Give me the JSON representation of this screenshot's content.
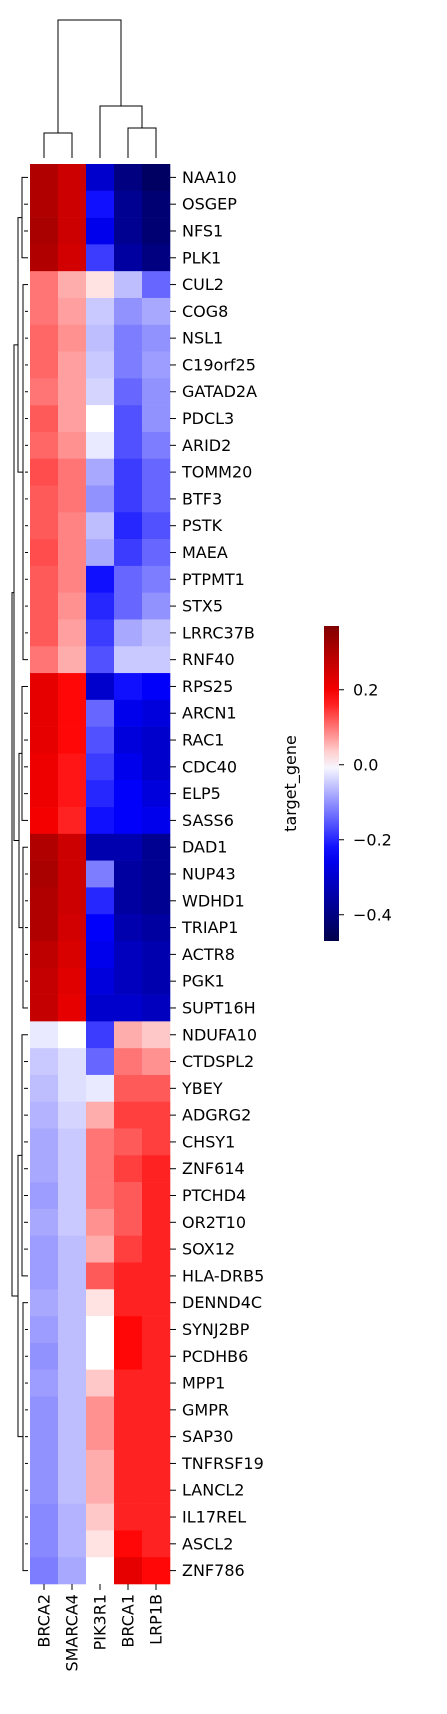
{
  "chart_data": {
    "type": "heatmap",
    "title": "",
    "columns": [
      "BRCA2",
      "SMARCA4",
      "PIK3R1",
      "BRCA1",
      "LRP1B"
    ],
    "row_labels": [
      "NAA10",
      "OSGEP",
      "NFS1",
      "PLK1",
      "CUL2",
      "COG8",
      "NSL1",
      "C19orf25",
      "GATAD2A",
      "PDCL3",
      "ARID2",
      "TOMM20",
      "BTF3",
      "PSTK",
      "MAEA",
      "PTPMT1",
      "STX5",
      "LRRC37B",
      "RNF40",
      "RPS25",
      "ARCN1",
      "RAC1",
      "CDC40",
      "ELP5",
      "SASS6",
      "DAD1",
      "NUP43",
      "WDHD1",
      "TRIAP1",
      "ACTR8",
      "PGK1",
      "SUPT16H",
      "NDUFA10",
      "CTDSPL2",
      "YBEY",
      "ADGRG2",
      "CHSY1",
      "ZNF614",
      "PTCHD4",
      "OR2T10",
      "SOX12",
      "HLA-DRB5",
      "DENND4C",
      "SYNJ2BP",
      "PCDHB6",
      "MPP1",
      "GMPR",
      "SAP30",
      "TNFRSF19",
      "LANCL2",
      "IL17REL",
      "ASCL2",
      "ZNF786"
    ],
    "values": [
      [
        0.3,
        0.26,
        -0.3,
        -0.4,
        -0.44
      ],
      [
        0.3,
        0.26,
        -0.22,
        -0.38,
        -0.42
      ],
      [
        0.31,
        0.26,
        -0.26,
        -0.38,
        -0.42
      ],
      [
        0.3,
        0.25,
        -0.18,
        -0.36,
        -0.4
      ],
      [
        0.1,
        0.06,
        0.02,
        -0.06,
        -0.14
      ],
      [
        0.1,
        0.07,
        -0.05,
        -0.1,
        -0.08
      ],
      [
        0.11,
        0.08,
        -0.06,
        -0.12,
        -0.1
      ],
      [
        0.11,
        0.07,
        -0.05,
        -0.12,
        -0.09
      ],
      [
        0.1,
        0.07,
        -0.04,
        -0.14,
        -0.1
      ],
      [
        0.12,
        0.07,
        0.0,
        -0.16,
        -0.1
      ],
      [
        0.11,
        0.08,
        -0.02,
        -0.16,
        -0.12
      ],
      [
        0.13,
        0.1,
        -0.08,
        -0.18,
        -0.14
      ],
      [
        0.12,
        0.1,
        -0.1,
        -0.18,
        -0.14
      ],
      [
        0.12,
        0.09,
        -0.06,
        -0.2,
        -0.16
      ],
      [
        0.13,
        0.09,
        -0.08,
        -0.18,
        -0.14
      ],
      [
        0.12,
        0.09,
        -0.22,
        -0.14,
        -0.12
      ],
      [
        0.12,
        0.08,
        -0.2,
        -0.14,
        -0.1
      ],
      [
        0.12,
        0.07,
        -0.18,
        -0.08,
        -0.06
      ],
      [
        0.1,
        0.06,
        -0.16,
        -0.05,
        -0.05
      ],
      [
        0.22,
        0.18,
        -0.3,
        -0.22,
        -0.24
      ],
      [
        0.22,
        0.18,
        -0.14,
        -0.26,
        -0.28
      ],
      [
        0.22,
        0.18,
        -0.16,
        -0.28,
        -0.3
      ],
      [
        0.21,
        0.17,
        -0.18,
        -0.26,
        -0.3
      ],
      [
        0.21,
        0.17,
        -0.2,
        -0.24,
        -0.28
      ],
      [
        0.2,
        0.16,
        -0.22,
        -0.24,
        -0.26
      ],
      [
        0.3,
        0.26,
        -0.34,
        -0.34,
        -0.38
      ],
      [
        0.31,
        0.26,
        -0.12,
        -0.36,
        -0.38
      ],
      [
        0.3,
        0.26,
        -0.2,
        -0.36,
        -0.38
      ],
      [
        0.3,
        0.25,
        -0.24,
        -0.34,
        -0.36
      ],
      [
        0.28,
        0.24,
        -0.26,
        -0.32,
        -0.34
      ],
      [
        0.27,
        0.23,
        -0.28,
        -0.32,
        -0.34
      ],
      [
        0.27,
        0.22,
        -0.3,
        -0.3,
        -0.32
      ],
      [
        -0.02,
        0.0,
        -0.18,
        0.06,
        0.04
      ],
      [
        -0.05,
        -0.03,
        -0.14,
        0.1,
        0.08
      ],
      [
        -0.06,
        -0.03,
        -0.02,
        0.12,
        0.12
      ],
      [
        -0.07,
        -0.04,
        0.06,
        0.14,
        0.14
      ],
      [
        -0.08,
        -0.05,
        0.1,
        0.12,
        0.14
      ],
      [
        -0.08,
        -0.05,
        0.1,
        0.14,
        0.16
      ],
      [
        -0.09,
        -0.05,
        0.1,
        0.12,
        0.16
      ],
      [
        -0.08,
        -0.05,
        0.08,
        0.12,
        0.16
      ],
      [
        -0.09,
        -0.06,
        0.06,
        0.14,
        0.16
      ],
      [
        -0.09,
        -0.06,
        0.12,
        0.16,
        0.16
      ],
      [
        -0.08,
        -0.06,
        0.02,
        0.16,
        0.16
      ],
      [
        -0.09,
        -0.06,
        0.0,
        0.18,
        0.16
      ],
      [
        -0.1,
        -0.06,
        0.0,
        0.18,
        0.16
      ],
      [
        -0.09,
        -0.06,
        0.04,
        0.16,
        0.16
      ],
      [
        -0.1,
        -0.06,
        0.08,
        0.16,
        0.16
      ],
      [
        -0.1,
        -0.06,
        0.08,
        0.16,
        0.16
      ],
      [
        -0.1,
        -0.06,
        0.06,
        0.16,
        0.16
      ],
      [
        -0.1,
        -0.06,
        0.06,
        0.16,
        0.16
      ],
      [
        -0.11,
        -0.07,
        0.04,
        0.16,
        0.16
      ],
      [
        -0.11,
        -0.07,
        0.02,
        0.18,
        0.16
      ],
      [
        -0.12,
        -0.08,
        0.0,
        0.22,
        0.18
      ]
    ],
    "colorbar": {
      "label": "target_gene",
      "ticks": [
        -0.4,
        -0.2,
        0.0,
        0.2
      ],
      "tick_labels": [
        "−0.4",
        "−0.2",
        "0.0",
        "0.2"
      ],
      "range": [
        -0.47,
        0.37
      ],
      "colormap": "seismic",
      "colors": [
        "#00004c",
        "#0000ff",
        "#ffffff",
        "#ff0000",
        "#800000"
      ]
    },
    "dendrograms": [
      "column",
      "row"
    ]
  }
}
